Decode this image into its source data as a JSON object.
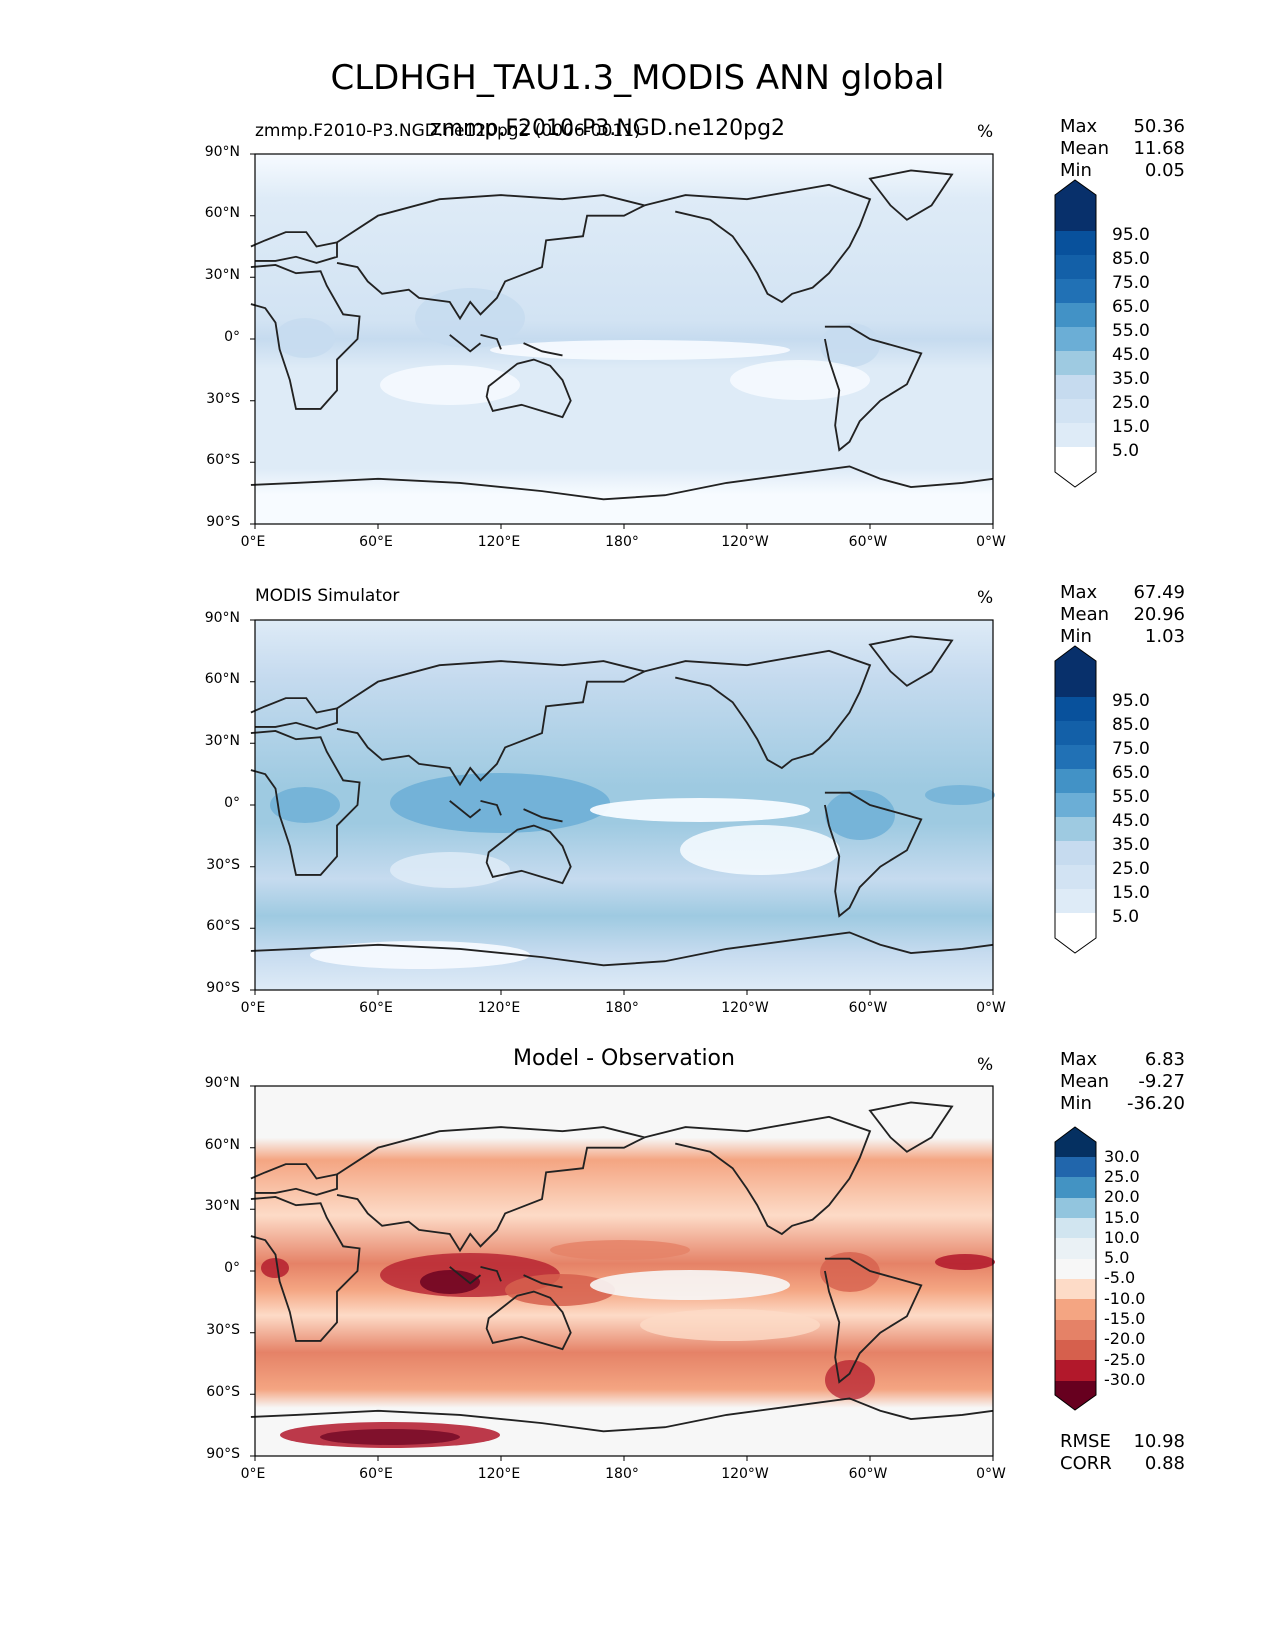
{
  "title": "CLDHGH_TAU1.3_MODIS ANN global",
  "overlap_titles": [
    "zmmp.F2010-P3.NGD.ne120pg2 (0006-0011)",
    "zmmp.F2010-P3.NGD.ne120pg2"
  ],
  "colors": {
    "blues": [
      "#f7fbff",
      "#deebf7",
      "#d2e3f3",
      "#c6dbef",
      "#9ecae1",
      "#6baed6",
      "#4292c6",
      "#2171b5",
      "#1360a8",
      "#08519c",
      "#08306b"
    ],
    "diff": [
      "#67001f",
      "#b2182b",
      "#d6604d",
      "#e58267",
      "#f4a582",
      "#fddbc7",
      "#f7f7f7",
      "#d1e5f0",
      "#92c5de",
      "#4393c3",
      "#2166ac",
      "#053061"
    ],
    "land_outline": "#222222"
  },
  "panels": [
    {
      "left_title": "zmmp.F2010-P3.NGD.ne120pg2 (0006-0011)",
      "center_title": "",
      "units": "%",
      "stats": {
        "max_label": "Max",
        "max": "50.36",
        "mean_label": "Mean",
        "mean": "11.68",
        "min_label": "Min",
        "min": "0.05"
      },
      "colorbar": {
        "levels": [
          "5.0",
          "15.0",
          "25.0",
          "35.0",
          "45.0",
          "55.0",
          "65.0",
          "75.0",
          "85.0",
          "95.0"
        ]
      }
    },
    {
      "left_title": "MODIS Simulator",
      "center_title": "",
      "units": "%",
      "stats": {
        "max_label": "Max",
        "max": "67.49",
        "mean_label": "Mean",
        "mean": "20.96",
        "min_label": "Min",
        "min": "1.03"
      },
      "colorbar": {
        "levels": [
          "5.0",
          "15.0",
          "25.0",
          "35.0",
          "45.0",
          "55.0",
          "65.0",
          "75.0",
          "85.0",
          "95.0"
        ]
      }
    },
    {
      "left_title": "",
      "center_title": "Model - Observation",
      "units": "%",
      "stats": {
        "max_label": "Max",
        "max": "6.83",
        "mean_label": "Mean",
        "mean": "-9.27",
        "min_label": "Min",
        "min": "-36.20"
      },
      "colorbar": {
        "levels": [
          "-30.0",
          "-25.0",
          "-20.0",
          "-15.0",
          "-10.0",
          "-5.0",
          "5.0",
          "10.0",
          "15.0",
          "20.0",
          "25.0",
          "30.0"
        ]
      },
      "metrics": {
        "rmse_label": "RMSE",
        "rmse": "10.98",
        "corr_label": "CORR",
        "corr": "0.88"
      }
    }
  ],
  "axes": {
    "lat_ticks": [
      "90°N",
      "60°N",
      "30°N",
      "0°",
      "30°S",
      "60°S",
      "90°S"
    ],
    "lon_ticks": [
      "0°E",
      "60°E",
      "120°E",
      "180°",
      "120°W",
      "60°W",
      "0°W"
    ]
  },
  "chart_data": [
    {
      "type": "heatmap",
      "title": "zmmp.F2010-P3.NGD.ne120pg2 (0006-0011)",
      "units": "%",
      "xlim": [
        0,
        360
      ],
      "ylim": [
        -90,
        90
      ],
      "levels": [
        5,
        15,
        25,
        35,
        45,
        55,
        65,
        75,
        85,
        95
      ],
      "stats": {
        "max": 50.36,
        "mean": 11.68,
        "min": 0.05
      }
    },
    {
      "type": "heatmap",
      "title": "MODIS Simulator",
      "units": "%",
      "xlim": [
        0,
        360
      ],
      "ylim": [
        -90,
        90
      ],
      "levels": [
        5,
        15,
        25,
        35,
        45,
        55,
        65,
        75,
        85,
        95
      ],
      "stats": {
        "max": 67.49,
        "mean": 20.96,
        "min": 1.03
      }
    },
    {
      "type": "heatmap",
      "title": "Model - Observation",
      "units": "%",
      "xlim": [
        0,
        360
      ],
      "ylim": [
        -90,
        90
      ],
      "levels": [
        -30,
        -25,
        -20,
        -15,
        -10,
        -5,
        5,
        10,
        15,
        20,
        25,
        30
      ],
      "stats": {
        "max": 6.83,
        "mean": -9.27,
        "min": -36.2
      },
      "metrics": {
        "rmse": 10.98,
        "corr": 0.88
      }
    }
  ]
}
